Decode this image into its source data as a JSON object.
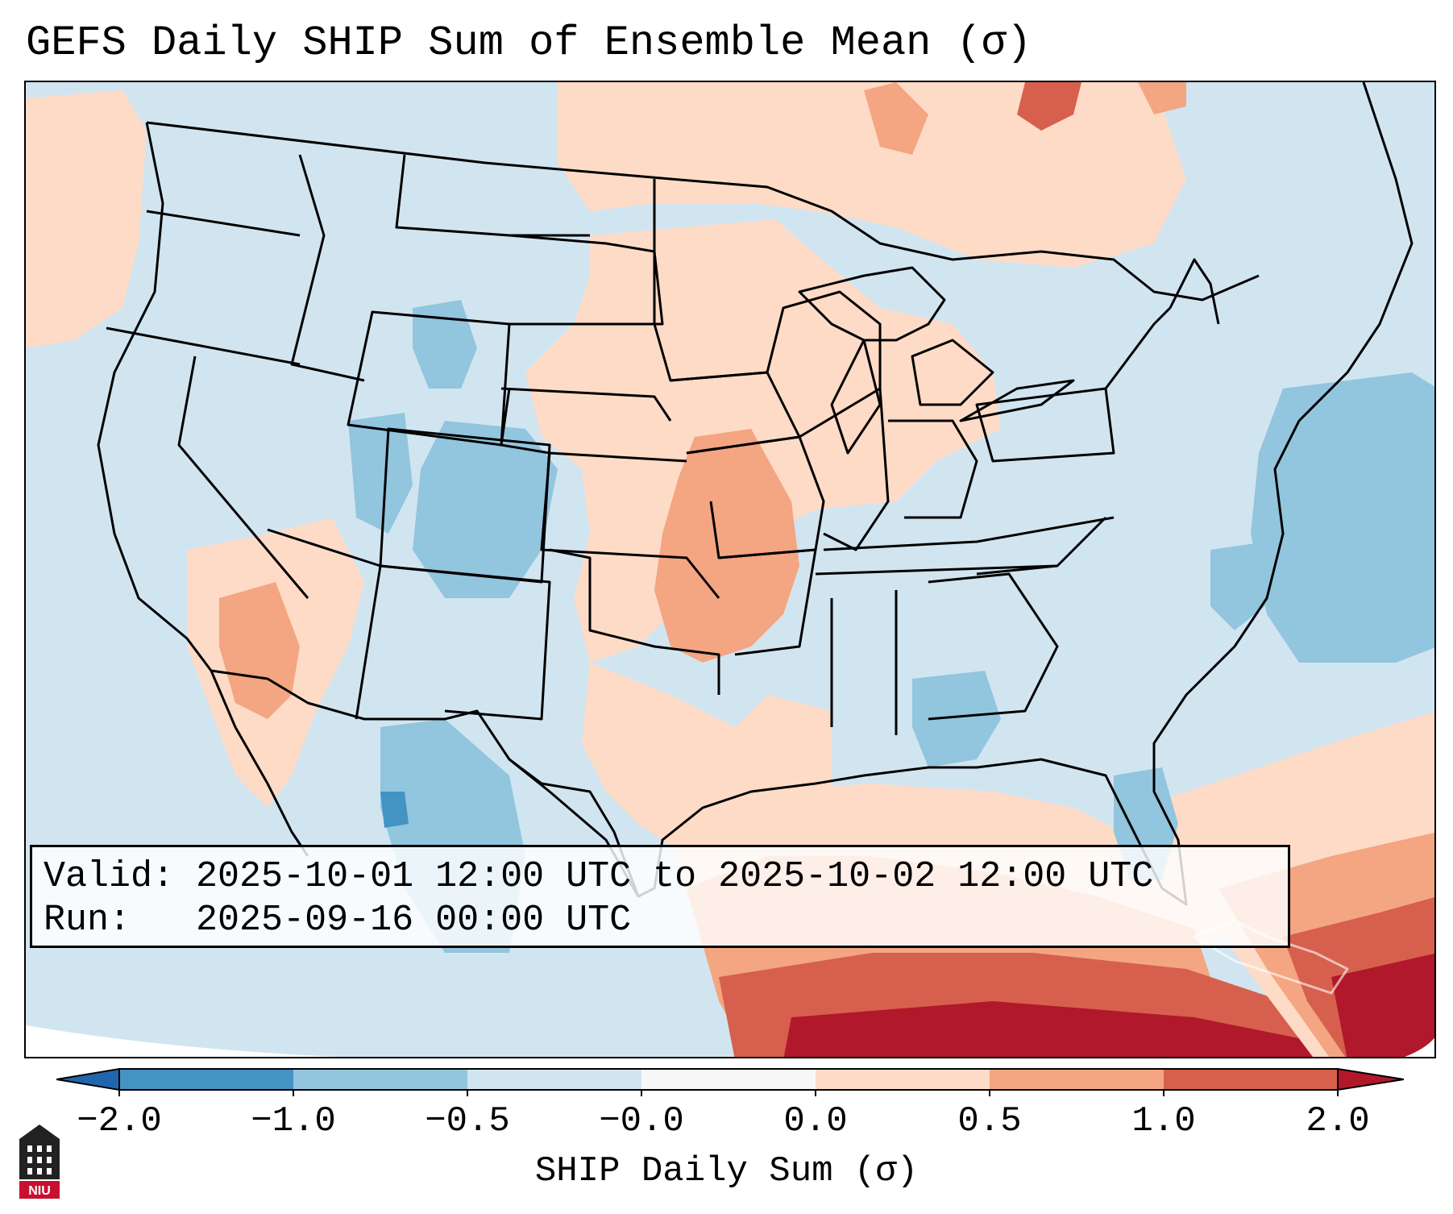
{
  "title": "GEFS Daily SHIP Sum of Ensemble Mean (σ)",
  "info": {
    "valid_label": "Valid:",
    "valid_value": "2025-10-01 12:00 UTC to 2025-10-02 12:00 UTC",
    "run_label": "Run:",
    "run_value": "2025-09-16 00:00 UTC"
  },
  "colorbar": {
    "label": "SHIP Daily Sum (σ)",
    "ticks": [
      "−2.0",
      "−1.0",
      "−0.5",
      "−0.0",
      "0.0",
      "0.5",
      "1.0",
      "2.0"
    ],
    "colors": [
      "#4393c3",
      "#92c5de",
      "#d1e5f0",
      "#f7f7f7",
      "#fddbc7",
      "#f4a582",
      "#d6604d"
    ],
    "extend_low_color": "#2166ac",
    "extend_high_color": "#b2182b"
  },
  "logo": {
    "text": "NIU"
  }
}
